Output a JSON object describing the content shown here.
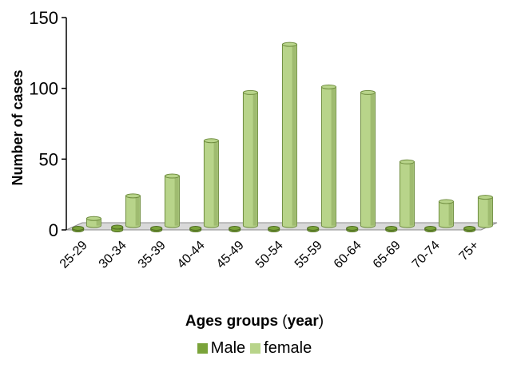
{
  "chart_data": {
    "type": "bar",
    "style": "3d-cylinder",
    "categories": [
      "25-29",
      "30-34",
      "35-39",
      "40-44",
      "45-49",
      "50-54",
      "55-59",
      "60-64",
      "65-69",
      "70-74",
      "75+"
    ],
    "series": [
      {
        "name": "Male",
        "values": [
          1,
          2,
          1,
          1,
          1,
          1,
          1,
          1,
          1,
          1,
          1
        ],
        "color": "#7aa33a"
      },
      {
        "name": "female",
        "values": [
          5,
          21,
          35,
          60,
          94,
          128,
          98,
          94,
          45,
          17,
          20
        ],
        "color": "#b8d48a"
      }
    ],
    "ylabel": "Number of cases",
    "xlabel_main": "Ages groups",
    "xlabel_paren_open": " (",
    "xlabel_unit": "year",
    "xlabel_paren_close": ")",
    "ylim": [
      0,
      150
    ],
    "yticks": [
      "0",
      "50",
      "100",
      "150"
    ],
    "legend_position": "bottom"
  }
}
